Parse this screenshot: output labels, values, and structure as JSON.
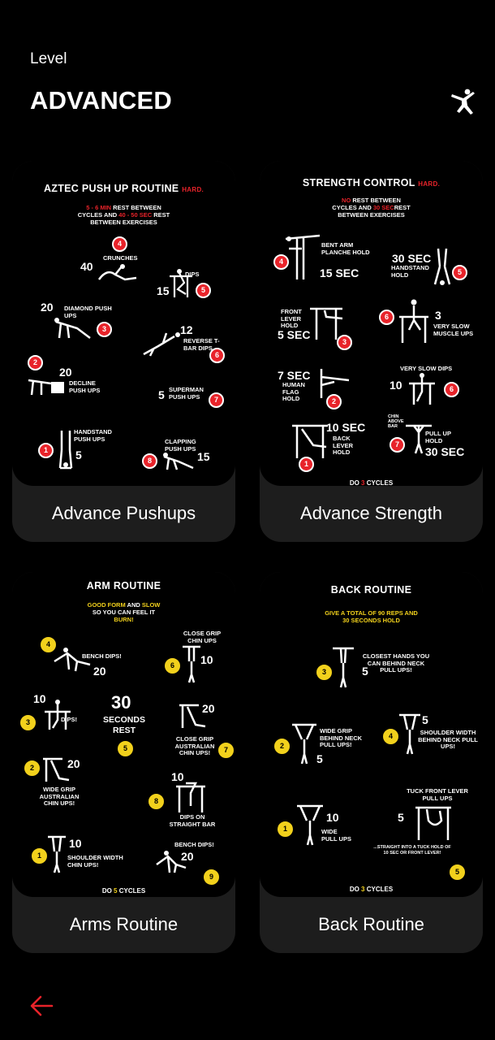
{
  "header": {
    "level_label": "Level",
    "level_title": "ADVANCED",
    "gym_icon": "gymnast-icon"
  },
  "cards": [
    {
      "caption": "Advance Pushups",
      "poster": {
        "title": "AZTEC PUSH UP ROUTINE",
        "difficulty": "HARD.",
        "rest_line1_a": "5 - 6 MIN",
        "rest_line1_b": " REST BETWEEN",
        "rest_line2_a": "CYCLES AND ",
        "rest_line2_b": "40 - 50 SEC",
        "rest_line2_c": " REST",
        "rest_line3": "BETWEEN EXERCISES",
        "exercises": [
          {
            "step": "4",
            "name": "CRUNCHES",
            "reps": "40"
          },
          {
            "step": "5",
            "name": "DIPS",
            "reps": "15"
          },
          {
            "step": "3",
            "name": "DIAMOND PUSH UPS",
            "reps": "20"
          },
          {
            "step": "6",
            "name": "REVERSE T-BAR DIPS",
            "reps": "12"
          },
          {
            "step": "2",
            "name": "DECLINE PUSH UPS",
            "reps": "20"
          },
          {
            "step": "7",
            "name": "SUPERMAN PUSH UPS",
            "reps": "5"
          },
          {
            "step": "1",
            "name": "HANDSTAND PUSH UPS",
            "reps": "5"
          },
          {
            "step": "8",
            "name": "CLAPPING PUSH UPS",
            "reps": "15"
          }
        ]
      }
    },
    {
      "caption": "Advance Strength",
      "poster": {
        "title": "STRENGTH CONTROL",
        "difficulty": "HARD.",
        "rest_line1_a": "NO",
        "rest_line1_b": " REST BETWEEN",
        "rest_line2_a": "CYCLES AND ",
        "rest_line2_b": "30 SEC",
        "rest_line2_c": "REST",
        "rest_line3": "BETWEEN EXERCISES",
        "exercises": [
          {
            "step": "4",
            "name": "BENT ARM PLANCHE HOLD",
            "reps": "15 SEC"
          },
          {
            "step": "5",
            "name": "HANDSTAND HOLD",
            "reps": "30 SEC"
          },
          {
            "step": "3",
            "name": "FRONT LEVER HOLD",
            "reps": "5 SEC"
          },
          {
            "step": "6",
            "name": "VERY SLOW MUSCLE UPS",
            "reps": "3"
          },
          {
            "step": "2",
            "name": "HUMAN FLAG HOLD",
            "reps": "7 SEC"
          },
          {
            "step": "6",
            "name": "VERY SLOW DIPS",
            "reps": "10"
          },
          {
            "step": "1",
            "name": "BACK LEVER HOLD",
            "reps": "10 SEC"
          },
          {
            "step": "7",
            "name": "PULL UP HOLD",
            "reps": "30 SEC"
          }
        ],
        "chin_note": "CHIN ABOVE BAR",
        "footer_a": "DO ",
        "footer_b": "3",
        "footer_c": " CYCLES"
      }
    },
    {
      "caption": "Arms Routine",
      "poster": {
        "title": "ARM ROUTINE",
        "note_a": "GOOD FORM",
        "note_b": " AND ",
        "note_c": "SLOW",
        "note_line2": "SO YOU CAN FEEL IT",
        "note_line3": "BURN!",
        "center_num": "30",
        "center_label1": "SECONDS",
        "center_label2": "REST",
        "center_step": "5",
        "exercises": [
          {
            "step": "4",
            "name": "BENCH DIPS!",
            "reps": "20"
          },
          {
            "step": "6",
            "name": "CLOSE GRIP CHIN UPS",
            "reps": "10"
          },
          {
            "step": "3",
            "name": "DIPS!",
            "reps": "10"
          },
          {
            "step": "7",
            "name": "CLOSE GRIP AUSTRALIAN CHIN UPS!",
            "reps": "20"
          },
          {
            "step": "2",
            "name": "WIDE GRIP AUSTRALIAN CHIN UPS!",
            "reps": "20"
          },
          {
            "step": "8",
            "name": "DIPS ON STRAIGHT BAR",
            "reps": "10"
          },
          {
            "step": "1",
            "name": "SHOULDER WIDTH CHIN UPS!",
            "reps": "10"
          },
          {
            "step": "9",
            "name": "BENCH DIPS!",
            "reps": "20"
          }
        ],
        "footer_a": "DO ",
        "footer_b": "5",
        "footer_c": " CYCLES"
      }
    },
    {
      "caption": "Back Routine",
      "poster": {
        "title": "BACK ROUTINE",
        "note_line1": "GIVE A TOTAL OF 90 REPS AND",
        "note_line2": "30 SECONDS HOLD",
        "exercises": [
          {
            "step": "3",
            "name": "CLOSEST HANDS YOU CAN BEHIND NECK PULL UPS!",
            "reps": "5"
          },
          {
            "step": "2",
            "name": "WIDE GRIP BEHIND NECK PULL UPS!",
            "reps": "5"
          },
          {
            "step": "4",
            "name": "SHOULDER WIDTH BEHIND NECK PULL UPS!",
            "reps": "5"
          },
          {
            "step": "1",
            "name": "WIDE PULL UPS",
            "reps": "10"
          },
          {
            "step": "5",
            "name": "TUCK FRONT LEVER PULL UPS",
            "reps": "5"
          }
        ],
        "tuck_note": "...STRAIGHT INTO A TUCK HOLD OF 10 SEC OR FRONT LEVER!",
        "footer_a": "DO ",
        "footer_b": "3",
        "footer_c": " CYCLES"
      }
    }
  ],
  "nav": {
    "back_icon": "arrow-left-icon"
  },
  "colors": {
    "accent": "#e8232a",
    "yellow": "#f2d11c",
    "card": "#1d1d1d",
    "bg": "#000000"
  }
}
